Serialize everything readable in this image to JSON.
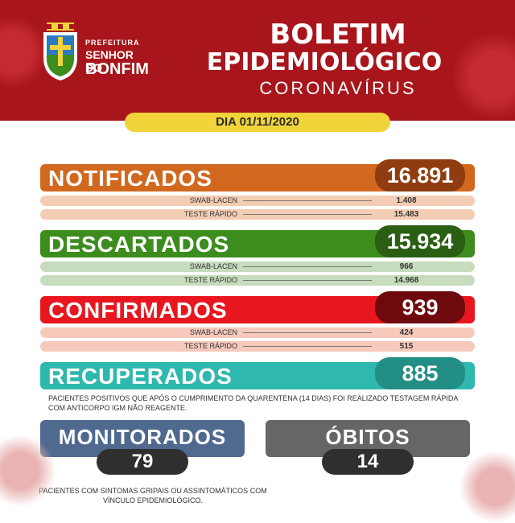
{
  "header": {
    "prefeitura": "PREFEITURA",
    "city_line1": "SENHOR DO",
    "city_line2": "BONFIM",
    "title_line1": "BOLETIM",
    "title_line2": "EPIDEMIOLÓGICO",
    "title_line3": "CORONAVÍRUS",
    "date": "DIA 01/11/2020"
  },
  "sections": [
    {
      "label": "NOTIFICADOS",
      "total": "16.891",
      "color": "#d2681e",
      "pill_color": "#8f3d10",
      "sub_color": "#f3cdb3",
      "rows": [
        {
          "label": "SWAB-LACEN",
          "value": "1.408"
        },
        {
          "label": "TESTE RÁPIDO",
          "value": "15.483"
        }
      ]
    },
    {
      "label": "DESCARTADOS",
      "total": "15.934",
      "color": "#3d8c1e",
      "pill_color": "#2a5e12",
      "sub_color": "#c6dcbc",
      "rows": [
        {
          "label": "SWAB-LACEN",
          "value": "966"
        },
        {
          "label": "TESTE RÁPIDO",
          "value": "14.968"
        }
      ]
    },
    {
      "label": "CONFIRMADOS",
      "total": "939",
      "color": "#e8171f",
      "pill_color": "#6e0a0e",
      "sub_color": "#f6c9bb",
      "rows": [
        {
          "label": "SWAB-LACEN",
          "value": "424"
        },
        {
          "label": "TESTE RÁPIDO",
          "value": "515"
        }
      ]
    },
    {
      "label": "RECUPERADOS",
      "total": "885",
      "color": "#2fb8ad",
      "pill_color": "#238e86",
      "rows": []
    }
  ],
  "recuperados_note": "PACIENTES POSITIVOS QUE APÓS O CUMPRIMENTO DA QUARENTENA (14 DIAS) FOI REALIZADO TESTAGEM RÁPIDA COM ANTICORPO IGM NÃO REAGENTE.",
  "monitorados": {
    "label": "MONITORADOS",
    "value": "79",
    "color": "#4f6a8e"
  },
  "obitos": {
    "label": "ÓBITOS",
    "value": "14",
    "color": "#666666"
  },
  "monitorados_note": "PACIENTES COM SINTOMAS GRIPAIS OU ASSINTOMÁTICOS COM VÍNCULO EPIDEMIOLÓGICO."
}
